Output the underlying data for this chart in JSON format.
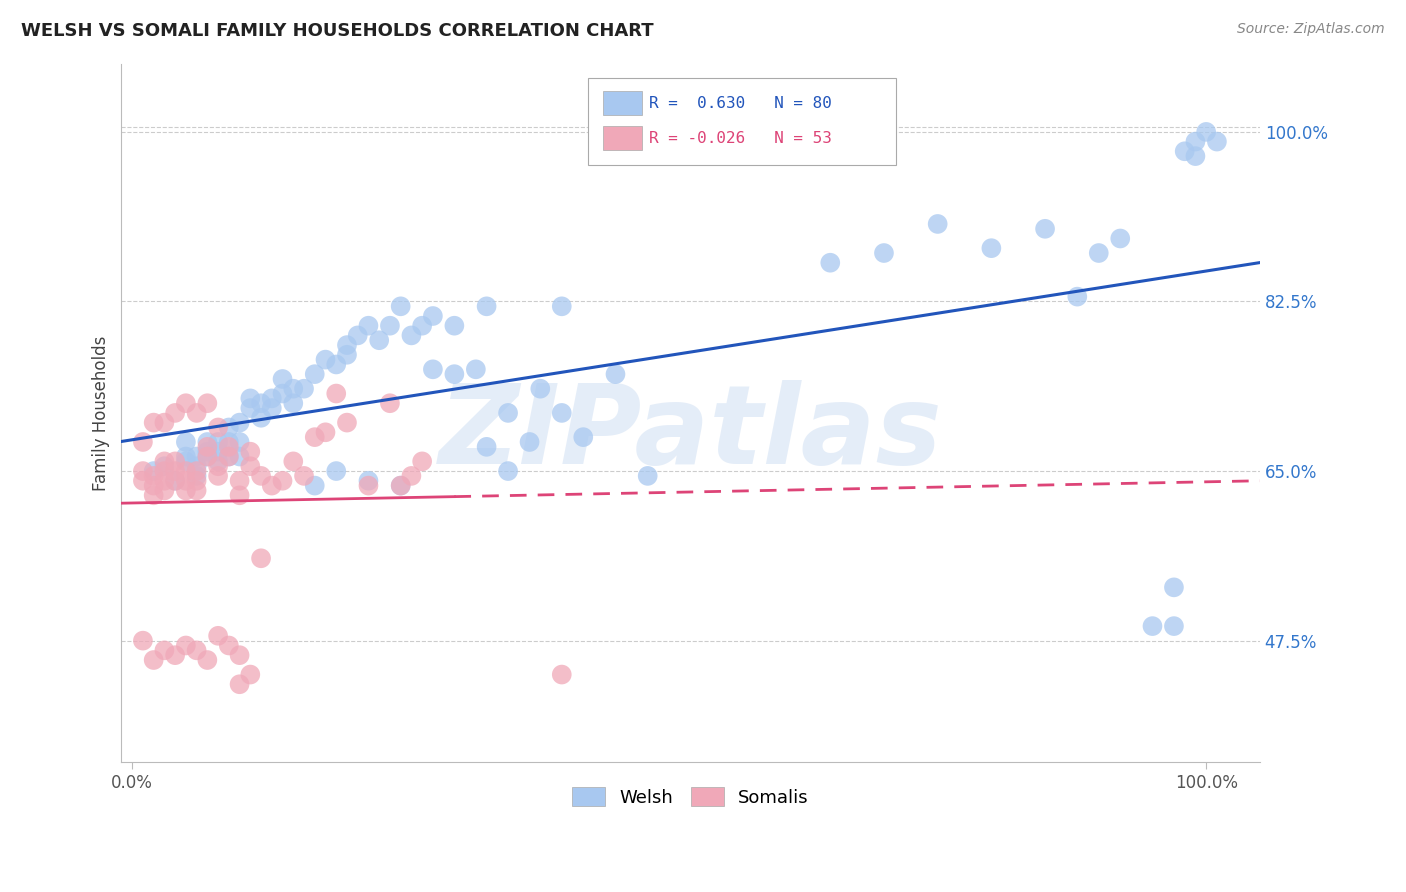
{
  "title": "WELSH VS SOMALI FAMILY HOUSEHOLDS CORRELATION CHART",
  "source": "Source: ZipAtlas.com",
  "ylabel": "Family Households",
  "welsh_color": "#A8C8F0",
  "somali_color": "#F0A8B8",
  "welsh_line_color": "#2255BB",
  "somali_line_color": "#DD4477",
  "R_welsh": 0.63,
  "N_welsh": 80,
  "R_somali": -0.026,
  "N_somali": 53,
  "watermark_text": "ZIPatlas",
  "background_color": "#FFFFFF",
  "grid_color": "#CCCCCC",
  "ytick_vals": [
    0.475,
    0.65,
    0.825,
    1.0
  ],
  "ytick_labels": [
    "47.5%",
    "65.0%",
    "82.5%",
    "100.0%"
  ],
  "welsh_x": [
    0.02,
    0.03,
    0.04,
    0.05,
    0.05,
    0.05,
    0.06,
    0.06,
    0.06,
    0.07,
    0.07,
    0.07,
    0.08,
    0.08,
    0.08,
    0.09,
    0.09,
    0.09,
    0.1,
    0.1,
    0.1,
    0.11,
    0.11,
    0.12,
    0.12,
    0.13,
    0.13,
    0.14,
    0.14,
    0.15,
    0.15,
    0.16,
    0.17,
    0.18,
    0.19,
    0.2,
    0.21,
    0.22,
    0.23,
    0.24,
    0.25,
    0.26,
    0.27,
    0.28,
    0.3,
    0.32,
    0.33,
    0.35,
    0.37,
    0.4,
    0.42,
    0.45,
    0.48,
    0.22,
    0.25,
    0.17,
    0.19,
    0.35,
    0.38,
    0.4,
    0.65,
    0.7,
    0.75,
    0.8,
    0.85,
    0.88,
    0.9,
    0.92,
    0.95,
    0.97,
    0.98,
    0.99,
    1.0,
    1.01,
    0.97,
    0.99,
    0.3,
    0.2,
    0.28,
    0.33
  ],
  "welsh_y": [
    0.65,
    0.655,
    0.64,
    0.66,
    0.665,
    0.68,
    0.645,
    0.655,
    0.665,
    0.665,
    0.67,
    0.68,
    0.66,
    0.67,
    0.68,
    0.665,
    0.68,
    0.695,
    0.665,
    0.68,
    0.7,
    0.715,
    0.725,
    0.705,
    0.72,
    0.715,
    0.725,
    0.73,
    0.745,
    0.72,
    0.735,
    0.735,
    0.75,
    0.765,
    0.76,
    0.78,
    0.79,
    0.8,
    0.785,
    0.8,
    0.82,
    0.79,
    0.8,
    0.755,
    0.75,
    0.755,
    0.675,
    0.71,
    0.68,
    0.71,
    0.685,
    0.75,
    0.645,
    0.64,
    0.635,
    0.635,
    0.65,
    0.65,
    0.735,
    0.82,
    0.865,
    0.875,
    0.905,
    0.88,
    0.9,
    0.83,
    0.875,
    0.89,
    0.49,
    0.53,
    0.98,
    0.99,
    1.0,
    0.99,
    0.49,
    0.975,
    0.8,
    0.77,
    0.81,
    0.82
  ],
  "somali_x": [
    0.01,
    0.01,
    0.02,
    0.02,
    0.02,
    0.03,
    0.03,
    0.03,
    0.03,
    0.04,
    0.04,
    0.04,
    0.05,
    0.05,
    0.05,
    0.06,
    0.06,
    0.06,
    0.07,
    0.07,
    0.08,
    0.08,
    0.09,
    0.09,
    0.1,
    0.1,
    0.11,
    0.11,
    0.12,
    0.13,
    0.14,
    0.15,
    0.16,
    0.17,
    0.18,
    0.19,
    0.2,
    0.22,
    0.24,
    0.25,
    0.26,
    0.27,
    0.01,
    0.02,
    0.03,
    0.04,
    0.05,
    0.06,
    0.07,
    0.08,
    0.4,
    0.1,
    0.12
  ],
  "somali_y": [
    0.64,
    0.65,
    0.625,
    0.635,
    0.645,
    0.63,
    0.64,
    0.65,
    0.66,
    0.64,
    0.65,
    0.66,
    0.63,
    0.64,
    0.65,
    0.63,
    0.64,
    0.65,
    0.665,
    0.675,
    0.645,
    0.655,
    0.665,
    0.675,
    0.625,
    0.64,
    0.655,
    0.67,
    0.645,
    0.635,
    0.64,
    0.66,
    0.645,
    0.685,
    0.69,
    0.73,
    0.7,
    0.635,
    0.72,
    0.635,
    0.645,
    0.66,
    0.68,
    0.7,
    0.7,
    0.71,
    0.72,
    0.71,
    0.72,
    0.695,
    0.44,
    0.46,
    0.56
  ]
}
